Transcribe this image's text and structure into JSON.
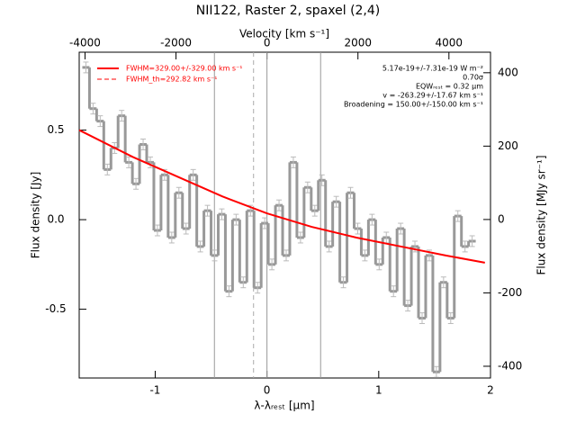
{
  "chart_data": {
    "type": "line",
    "title": "NII122, Raster 2, spaxel (2,4)",
    "x_label": "λ-λᵣₑₛₜ [μm]",
    "y_label": "Flux density [Jy]",
    "x2_label": "Velocity [km s⁻¹]",
    "y2_label": "Flux density [MJy sr⁻¹]",
    "xlim": [
      -1.68,
      2.0
    ],
    "xticks": [
      -1,
      0,
      1,
      2
    ],
    "ylim": [
      -0.884,
      0.935
    ],
    "yticks": [
      -0.5,
      {
        "value": 0,
        "label": "0.0"
      },
      0.5
    ],
    "x2lim": [
      -4128,
      4914
    ],
    "x2ticks": [
      -4000,
      -2000,
      0,
      2000,
      4000
    ],
    "y2lim": [
      -432,
      456
    ],
    "y2ticks": [
      -400,
      -200,
      0,
      200,
      400
    ],
    "x": [
      -1.62,
      -1.556,
      -1.492,
      -1.428,
      -1.364,
      -1.3,
      -1.236,
      -1.172,
      -1.108,
      -1.044,
      -0.98,
      -0.916,
      -0.852,
      -0.788,
      -0.724,
      -0.66,
      -0.596,
      -0.532,
      -0.468,
      -0.404,
      -0.34,
      -0.276,
      -0.212,
      -0.148,
      -0.084,
      -0.02,
      0.044,
      0.108,
      0.172,
      0.236,
      0.3,
      0.364,
      0.428,
      0.492,
      0.556,
      0.62,
      0.684,
      0.748,
      0.812,
      0.876,
      0.94,
      1.004,
      1.068,
      1.132,
      1.196,
      1.26,
      1.324,
      1.388,
      1.452,
      1.516,
      1.58,
      1.644,
      1.708,
      1.772,
      1.836
    ],
    "series": [
      {
        "color": "#999999",
        "values": [
          0.85,
          0.62,
          0.55,
          0.28,
          0.4,
          0.58,
          0.32,
          0.2,
          0.42,
          0.32,
          -0.06,
          0.25,
          -0.1,
          0.15,
          -0.05,
          0.25,
          -0.15,
          0.05,
          -0.2,
          0.03,
          -0.4,
          0.0,
          -0.35,
          0.05,
          -0.38,
          -0.02,
          -0.25,
          0.08,
          -0.2,
          0.32,
          -0.1,
          0.18,
          0.05,
          0.22,
          -0.15,
          0.1,
          -0.35,
          0.15,
          -0.05,
          -0.2,
          0.0,
          -0.25,
          -0.1,
          -0.4,
          -0.05,
          -0.48,
          -0.15,
          -0.55,
          -0.2,
          -0.85,
          -0.35,
          -0.55,
          0.02,
          -0.15,
          -0.12
        ],
        "errors": [
          0.03,
          0.03,
          0.03,
          0.03,
          0.03,
          0.03,
          0.03,
          0.03,
          0.03,
          0.03,
          0.03,
          0.03,
          0.03,
          0.03,
          0.03,
          0.03,
          0.03,
          0.03,
          0.03,
          0.03,
          0.03,
          0.03,
          0.03,
          0.03,
          0.03,
          0.03,
          0.03,
          0.03,
          0.03,
          0.03,
          0.03,
          0.03,
          0.03,
          0.03,
          0.03,
          0.03,
          0.03,
          0.03,
          0.03,
          0.03,
          0.03,
          0.03,
          0.03,
          0.03,
          0.03,
          0.03,
          0.03,
          0.03,
          0.03,
          0.03,
          0.03,
          0.03,
          0.03,
          0.03,
          0.03
        ]
      }
    ],
    "fit": {
      "name": "FWHM=329.00+/-329.00 km s⁻¹",
      "color": "#ff0000",
      "x": [
        -1.68,
        -1.2,
        -0.8,
        -0.4,
        0,
        0.4,
        0.8,
        1.2,
        1.6,
        1.95
      ],
      "values": [
        0.5,
        0.35,
        0.24,
        0.13,
        0.035,
        -0.04,
        -0.1,
        -0.15,
        -0.2,
        -0.24
      ]
    },
    "fwhm_th": {
      "name": "FWHM_th=292.82 km s⁻¹",
      "color": "#ff0000"
    },
    "vlines": [
      -0.47,
      0,
      0.48
    ],
    "vline_dashed": -0.12,
    "annotations": [
      "5.17e-19+/-7.31e-19 W m⁻²",
      "0.70σ",
      "EQWᵣₑₛₜ = 0.32 μm",
      "v = -263.29+/-17.67 km s⁻¹",
      "Broadening = 150.00+/-150.00 km s⁻¹"
    ]
  }
}
